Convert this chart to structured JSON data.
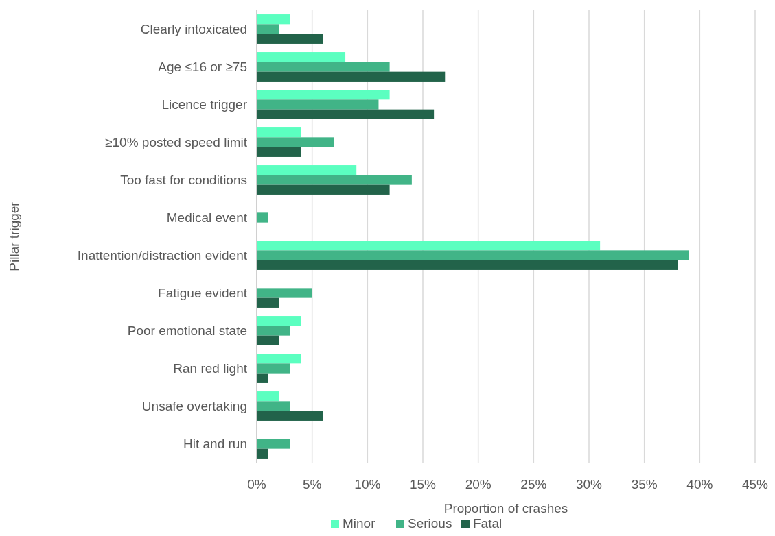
{
  "chart_data": {
    "type": "bar",
    "orientation": "horizontal",
    "xlabel": "Proportion of crashes",
    "ylabel": "Pillar trigger",
    "categories": [
      "Clearly intoxicated",
      "Age ≤16 or ≥75",
      "Licence trigger",
      "≥10% posted speed limit",
      "Too fast for conditions",
      "Medical event",
      "Inattention/distraction evident",
      "Fatigue evident",
      "Poor emotional state",
      "Ran red light",
      "Unsafe overtaking",
      "Hit and run"
    ],
    "series": [
      {
        "name": "Minor",
        "color": "#5bffc0",
        "values": [
          3,
          8,
          12,
          4,
          9,
          0,
          31,
          0,
          4,
          4,
          2,
          0
        ]
      },
      {
        "name": "Serious",
        "color": "#41b487",
        "values": [
          2,
          12,
          11,
          7,
          14,
          1,
          39,
          5,
          3,
          3,
          3,
          3
        ]
      },
      {
        "name": "Fatal",
        "color": "#22634a",
        "values": [
          6,
          17,
          16,
          4,
          12,
          0,
          38,
          2,
          2,
          1,
          6,
          1
        ]
      }
    ],
    "xlim": [
      0,
      45
    ],
    "xticks": [
      {
        "value": 0,
        "label": "0%"
      },
      {
        "value": 5,
        "label": "5%"
      },
      {
        "value": 10,
        "label": "10%"
      },
      {
        "value": 15,
        "label": "15%"
      },
      {
        "value": 20,
        "label": "20%"
      },
      {
        "value": 25,
        "label": "25%"
      },
      {
        "value": 30,
        "label": "30%"
      },
      {
        "value": 35,
        "label": "35%"
      },
      {
        "value": 40,
        "label": "40%"
      },
      {
        "value": 45,
        "label": "45%"
      }
    ],
    "grid": "x",
    "legend": "bottom"
  }
}
